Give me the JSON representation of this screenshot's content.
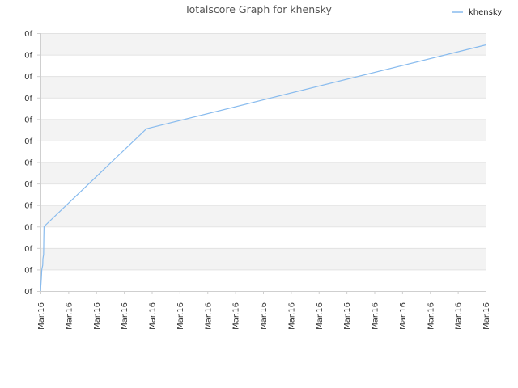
{
  "chart_data": {
    "type": "line",
    "title": "Totalscore Graph for khensky",
    "xlabel": "",
    "ylabel": "",
    "x_tick_labels": [
      "Mar.16",
      "Mar.16",
      "Mar.16",
      "Mar.16",
      "Mar.16",
      "Mar.16",
      "Mar.16",
      "Mar.16",
      "Mar.16",
      "Mar.16",
      "Mar.16",
      "Mar.16",
      "Mar.16",
      "Mar.16",
      "Mar.16",
      "Mar.16",
      "Mar.16"
    ],
    "y_tick_labels": [
      "0f",
      "0f",
      "0f",
      "0f",
      "0f",
      "0f",
      "0f",
      "0f",
      "0f",
      "0f",
      "0f",
      "0f",
      "0f"
    ],
    "ylim": [
      0,
      12
    ],
    "xlim": [
      0,
      100
    ],
    "grid": true,
    "legend_position": "top-right",
    "series": [
      {
        "name": "khensky",
        "color": "#88bbee",
        "x": [
          0,
          0.2,
          0.3,
          0.5,
          0.55,
          0.7,
          0.75,
          0.8,
          23.8,
          100
        ],
        "y": [
          0,
          0.6,
          1.0,
          1.2,
          1.5,
          1.7,
          2.5,
          3.0,
          7.55,
          11.45
        ]
      }
    ]
  }
}
